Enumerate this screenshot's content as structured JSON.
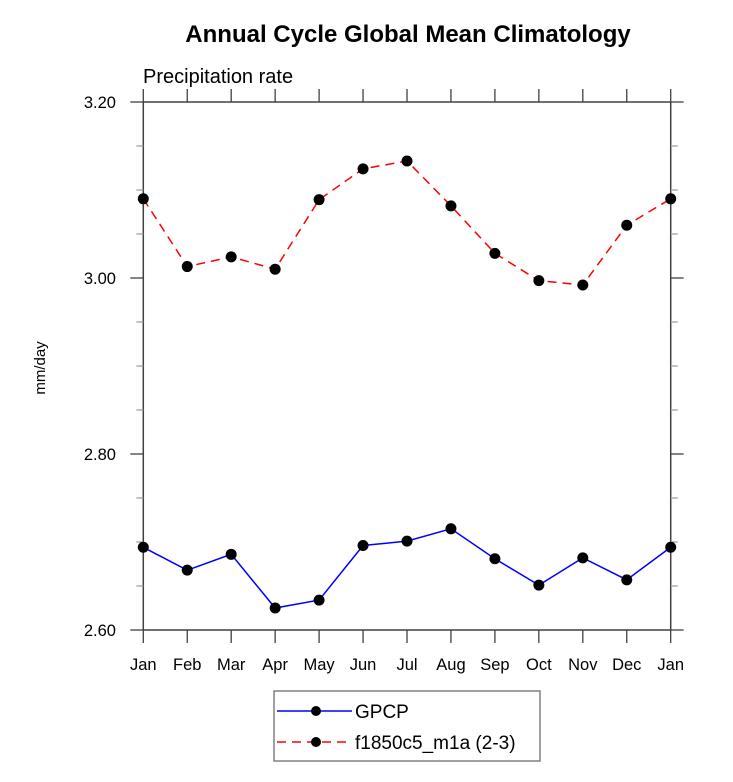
{
  "chart_data": {
    "type": "line",
    "title": "Annual Cycle Global Mean Climatology",
    "subtitle": "Precipitation rate",
    "xlabel": "",
    "ylabel": "mm/day",
    "categories": [
      "Jan",
      "Feb",
      "Mar",
      "Apr",
      "May",
      "Jun",
      "Jul",
      "Aug",
      "Sep",
      "Oct",
      "Nov",
      "Dec",
      "Jan"
    ],
    "ylim": [
      2.6,
      3.2
    ],
    "yticks": [
      2.6,
      2.8,
      3.0,
      3.2
    ],
    "ytick_labels": [
      "2.60",
      "2.80",
      "3.00",
      "3.20"
    ],
    "yminor_step": 0.05,
    "grid": false,
    "legend_position": "bottom-center",
    "series": [
      {
        "name": "GPCP",
        "color": "#0000ff",
        "line_style": "solid",
        "marker": "filled-circle",
        "values": [
          2.694,
          2.668,
          2.686,
          2.625,
          2.634,
          2.696,
          2.701,
          2.715,
          2.681,
          2.651,
          2.682,
          2.657,
          2.694
        ]
      },
      {
        "name": "f1850c5_m1a (2-3)",
        "color": "#ff0000",
        "line_style": "dashed",
        "marker": "filled-circle",
        "values": [
          3.09,
          3.013,
          3.024,
          3.01,
          3.089,
          3.124,
          3.133,
          3.082,
          3.028,
          2.997,
          2.992,
          3.06,
          3.09
        ]
      }
    ]
  }
}
